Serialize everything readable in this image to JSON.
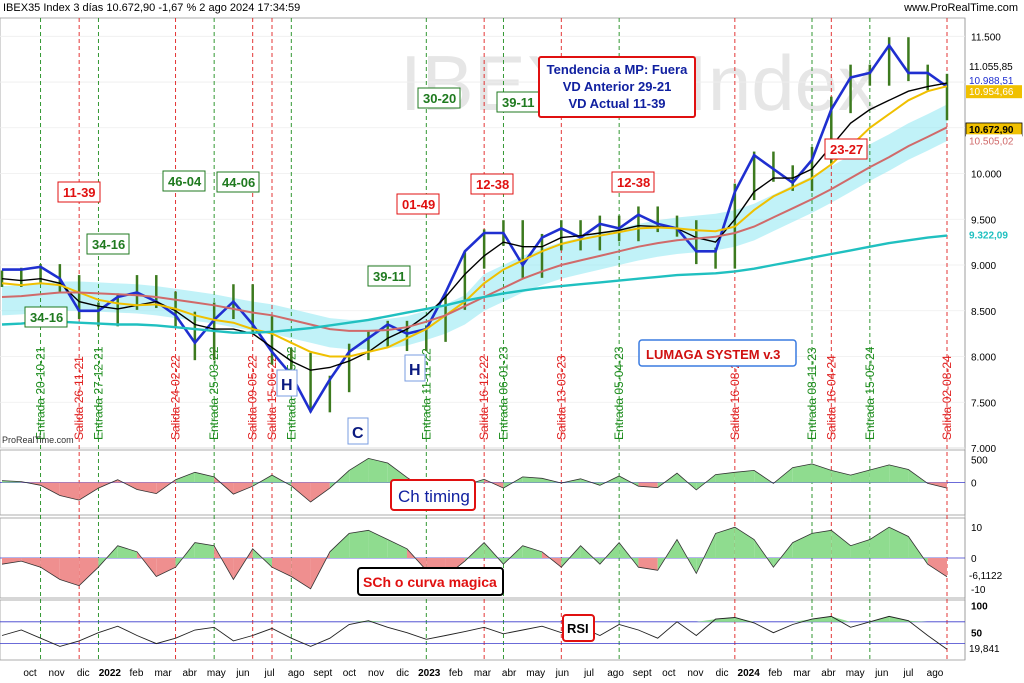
{
  "header": {
    "title": "IBEX35 Index 3 días 10.672,90 -1,67 % 2 ago 2024 17:34:59",
    "site": "www.ProRealTime.com"
  },
  "watermark": "IBEX35 Index",
  "credit": "ProRealTime.com",
  "colors": {
    "price": "#3c7a1e",
    "ma_fast": "#1f2fd0",
    "ma_black": "#000000",
    "ma_yellow": "#f0c000",
    "ma_red": "#d06a6a",
    "ma_cyan": "#20c0c0",
    "cloud": "#8ee8f2",
    "entrada": "#1c8c1c",
    "salida": "#e02020",
    "box_red": "#e01010",
    "box_green": "#1f7a1f",
    "box_blue": "#3a7be0",
    "osc_pos": "#8fdc8f",
    "osc_neg": "#ef8f8f",
    "band": "#3a3acc"
  },
  "chart_data": [
    {
      "type": "line",
      "panel": "price",
      "title": "IBEX35 Index",
      "x_labels": [
        "oct",
        "nov",
        "dic",
        "2022",
        "feb",
        "mar",
        "abr",
        "may",
        "jun",
        "jul",
        "ago",
        "sept",
        "oct",
        "nov",
        "dic",
        "2023",
        "feb",
        "mar",
        "abr",
        "may",
        "jun",
        "jul",
        "ago",
        "sept",
        "oct",
        "nov",
        "dic",
        "2024",
        "feb",
        "mar",
        "abr",
        "may",
        "jun",
        "jul",
        "ago"
      ],
      "y_ticks": [
        "11.500",
        "11.000",
        "10.500",
        "10.000",
        "9.500",
        "9.000",
        "8.500",
        "8.000",
        "7.500",
        "7.000"
      ],
      "ylim": [
        7000,
        11700
      ],
      "price_tags": [
        "11.055,85",
        "10.988,51",
        "10.954,66",
        "10.672,90",
        "10.505,02",
        "9.322,09"
      ],
      "series": [
        {
          "name": "IBEX35",
          "values": [
            8850,
            8880,
            8920,
            8800,
            8500,
            8420,
            8600,
            8800,
            8620,
            8400,
            8050,
            8500,
            8700,
            8350,
            8000,
            7950,
            7480,
            7700,
            8050,
            8200,
            8300,
            8150,
            8250,
            8600,
            9050,
            9300,
            9400,
            8950,
            9250,
            9400,
            9250,
            9450,
            9350,
            9550,
            9450,
            9400,
            9100,
            9050,
            9800,
            10150,
            10000,
            9900,
            10200,
            10750,
            11100,
            11050,
            11400,
            11100,
            11000,
            10672
          ]
        },
        {
          "name": "MA azul",
          "values": [
            8950,
            8950,
            8980,
            8850,
            8500,
            8500,
            8650,
            8700,
            8600,
            8450,
            8150,
            8400,
            8600,
            8350,
            8050,
            7800,
            7400,
            7750,
            8050,
            8200,
            8350,
            8250,
            8300,
            8700,
            9150,
            9350,
            9350,
            9000,
            9300,
            9400,
            9300,
            9450,
            9400,
            9550,
            9450,
            9400,
            9150,
            9150,
            9800,
            10200,
            10050,
            9900,
            10150,
            10700,
            11050,
            11100,
            11400,
            11100,
            11100,
            10950
          ]
        },
        {
          "name": "MA negra",
          "values": [
            8850,
            8830,
            8850,
            8800,
            8600,
            8550,
            8520,
            8560,
            8600,
            8500,
            8350,
            8300,
            8300,
            8250,
            8100,
            7950,
            7850,
            7880,
            7950,
            8050,
            8200,
            8300,
            8450,
            8650,
            8900,
            9100,
            9250,
            9200,
            9200,
            9300,
            9320,
            9350,
            9380,
            9430,
            9420,
            9400,
            9300,
            9250,
            9500,
            9800,
            9950,
            9950,
            10050,
            10300,
            10550,
            10700,
            10800,
            10900,
            10950,
            10988
          ]
        },
        {
          "name": "MA amarilla",
          "values": [
            8800,
            8780,
            8800,
            8780,
            8700,
            8620,
            8580,
            8560,
            8570,
            8520,
            8450,
            8400,
            8370,
            8300,
            8250,
            8150,
            8050,
            8000,
            8000,
            8050,
            8100,
            8200,
            8300,
            8450,
            8600,
            8800,
            8950,
            9050,
            9150,
            9230,
            9280,
            9320,
            9360,
            9400,
            9410,
            9400,
            9380,
            9370,
            9420,
            9600,
            9750,
            9850,
            9950,
            10100,
            10300,
            10500,
            10650,
            10800,
            10900,
            10955
          ]
        },
        {
          "name": "MA roja",
          "values": [
            8650,
            8660,
            8680,
            8700,
            8700,
            8690,
            8680,
            8670,
            8650,
            8620,
            8590,
            8560,
            8520,
            8480,
            8450,
            8400,
            8350,
            8300,
            8280,
            8280,
            8290,
            8320,
            8380,
            8450,
            8550,
            8650,
            8750,
            8850,
            8930,
            9000,
            9050,
            9100,
            9150,
            9200,
            9240,
            9270,
            9290,
            9310,
            9350,
            9420,
            9520,
            9620,
            9720,
            9830,
            9950,
            10070,
            10180,
            10300,
            10400,
            10505
          ]
        },
        {
          "name": "MA cian",
          "values": [
            8350,
            8360,
            8380,
            8380,
            8370,
            8360,
            8350,
            8350,
            8340,
            8320,
            8300,
            8280,
            8260,
            8260,
            8270,
            8290,
            8310,
            8340,
            8370,
            8400,
            8440,
            8480,
            8520,
            8560,
            8610,
            8650,
            8690,
            8720,
            8750,
            8770,
            8790,
            8810,
            8830,
            8850,
            8870,
            8890,
            8900,
            8910,
            8930,
            8960,
            9000,
            9040,
            9080,
            9120,
            9160,
            9200,
            9240,
            9270,
            9300,
            9322
          ]
        }
      ],
      "entradas": [
        "Entrada 20-10-21",
        "Entrada 27-12-21",
        "Entrada 25-03-22",
        "Entrada 27-05-22",
        "Entrada 11-11-22",
        "Entrada 06-01-23",
        "Entrada 05-04-23",
        "Entrada 08-11-23",
        "Entrada 15-05-24"
      ],
      "salidas": [
        "Salida 26-11-21",
        "Salida 24-02-22",
        "Salida 09-05-22",
        "Salida 15-06-22",
        "Salida 16-12-22",
        "Salida 13-03-23",
        "Salida 16-08-23",
        "Salida 16-04-24",
        "Salida 02-08-24"
      ],
      "annotations": [
        "34-16",
        "34-16",
        "11-39",
        "46-04",
        "44-06",
        "39-11",
        "01-49",
        "30-20",
        "12-38",
        "39-11",
        "12-38",
        "23-27",
        "H",
        "C",
        "H"
      ],
      "info_box": [
        "Tendencia a MP: Fuera",
        "VD Anterior 29-21",
        "VD Actual 11-39"
      ],
      "system_label": "LUMAGA SYSTEM v.3"
    },
    {
      "type": "area",
      "panel": "osc1",
      "title": "Ch timing",
      "y_ticks": [
        "500",
        "0"
      ],
      "ylim": [
        -700,
        700
      ],
      "values": [
        40,
        20,
        -60,
        -280,
        -380,
        -120,
        60,
        -150,
        -240,
        60,
        220,
        120,
        -250,
        -80,
        160,
        -70,
        -420,
        -120,
        260,
        520,
        420,
        110,
        -160,
        -120,
        -60,
        70,
        -120,
        120,
        90,
        -10,
        80,
        -60,
        140,
        -80,
        -110,
        200,
        -160,
        170,
        220,
        260,
        -20,
        320,
        400,
        260,
        160,
        270,
        380,
        280,
        -20,
        -120
      ]
    },
    {
      "type": "area",
      "panel": "osc2",
      "title": "SCh o curva magica",
      "y_ticks": [
        "10",
        "0",
        "-10"
      ],
      "tag": "-6,1122",
      "ylim": [
        -13,
        13
      ],
      "values": [
        -2,
        -1,
        -3,
        -7,
        -9,
        -3,
        4,
        2,
        -6,
        -3,
        5,
        4,
        -7,
        3,
        -3,
        -6,
        -10,
        2,
        8,
        9,
        6,
        3,
        -4,
        -6,
        -1,
        5,
        -2,
        4,
        2,
        -3,
        4,
        -2,
        5,
        -3,
        -4,
        6,
        -5,
        8,
        10,
        6,
        -3,
        5,
        8,
        9,
        4,
        6,
        10,
        7,
        -2,
        -6.1122
      ]
    },
    {
      "type": "line",
      "panel": "rsi",
      "title": "RSI",
      "y_ticks": [
        "100",
        "50",
        "0"
      ],
      "tag": "19,841",
      "ylim": [
        0,
        110
      ],
      "bands": [
        30,
        70
      ],
      "values": [
        45,
        55,
        40,
        25,
        35,
        50,
        62,
        45,
        30,
        40,
        55,
        60,
        35,
        45,
        58,
        40,
        25,
        40,
        65,
        72,
        60,
        50,
        38,
        45,
        52,
        60,
        48,
        55,
        62,
        50,
        60,
        45,
        65,
        55,
        40,
        70,
        45,
        75,
        78,
        68,
        50,
        65,
        75,
        80,
        60,
        70,
        80,
        72,
        45,
        19.841
      ]
    }
  ]
}
